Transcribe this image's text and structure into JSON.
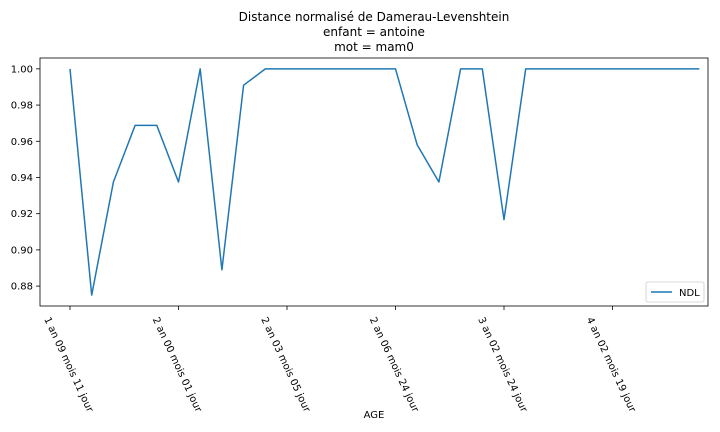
{
  "chart_data": {
    "type": "line",
    "title": [
      "Distance normalisé de Damerau-Levenshtein",
      "enfant = antoine",
      "mot = mam0"
    ],
    "xlabel": "AGE",
    "ylabel": "",
    "xticks": [
      "1 an 09 mois 11 jour",
      "2 an 00 mois 01 jour",
      "2 an 03 mois 05 jour",
      "2 an 06 mois 24 jour",
      "3 an 02 mois 24 jour",
      "4 an 02 mois 19 jour"
    ],
    "yticks": [
      "0.88",
      "0.90",
      "0.92",
      "0.94",
      "0.96",
      "0.98",
      "1.00"
    ],
    "ylim": [
      0.869,
      1.006
    ],
    "grid": false,
    "legend": "lower-right",
    "colors": {
      "line": "#1f77b4"
    },
    "series": [
      {
        "name": "NDL",
        "values": [
          1.0,
          0.875,
          0.9375,
          0.96875,
          0.96875,
          0.9375,
          1.0,
          0.889,
          0.991,
          1.0,
          1.0,
          1.0,
          1.0,
          1.0,
          1.0,
          1.0,
          0.958,
          0.9375,
          1.0,
          1.0,
          0.9167,
          1.0,
          1.0,
          1.0,
          1.0,
          1.0,
          1.0,
          1.0,
          1.0,
          1.0
        ]
      }
    ]
  }
}
